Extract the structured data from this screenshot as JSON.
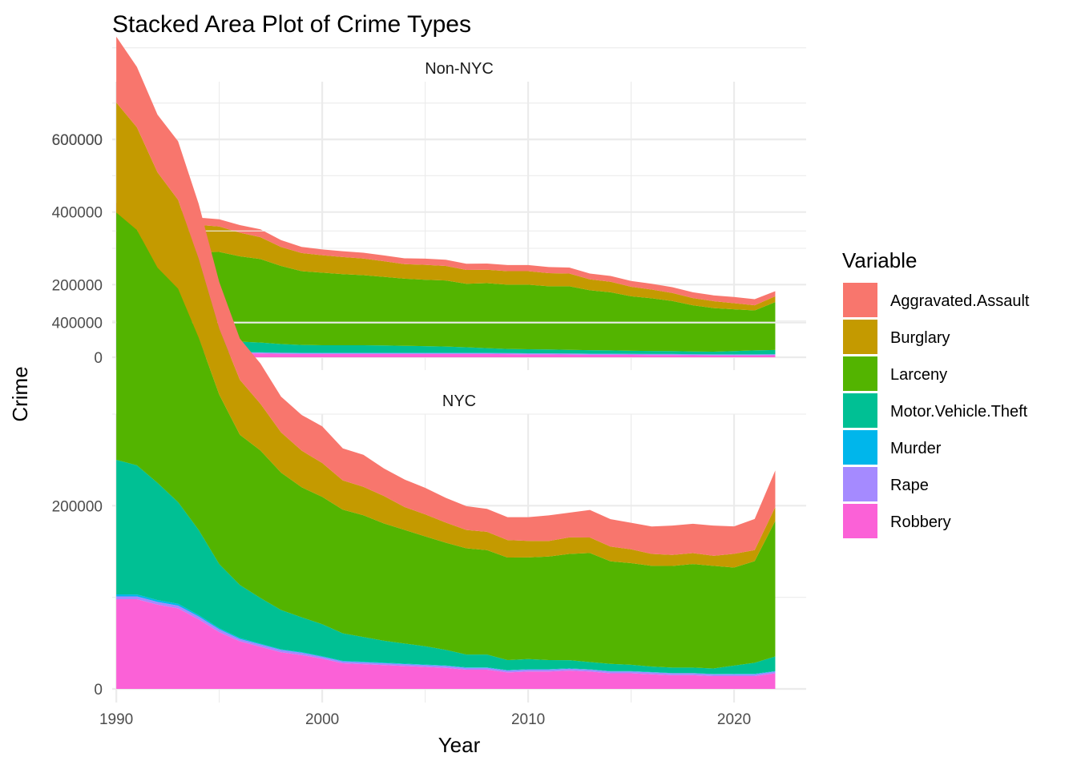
{
  "chart_data": {
    "type": "area",
    "stacked": true,
    "title": "Stacked Area Plot of Crime Types",
    "xlabel": "Year",
    "ylabel": "Crime",
    "xlim": [
      1989.8,
      2023.5
    ],
    "ylim": [
      0,
      730000
    ],
    "x_ticks": [
      1990,
      2000,
      2010,
      2020
    ],
    "y_ticks": [
      0,
      200000,
      400000,
      600000
    ],
    "grid": true,
    "legend": {
      "title": "Variable",
      "position": "right"
    },
    "colors": {
      "Aggravated.Assault": "#F8766D",
      "Burglary": "#C49A00",
      "Larceny": "#53B400",
      "Motor.Vehicle.Theft": "#00C094",
      "Murder": "#00B6EB",
      "Rape": "#A58AFF",
      "Robbery": "#FB61D7"
    },
    "stack_order": [
      "Robbery",
      "Rape",
      "Murder",
      "Motor.Vehicle.Theft",
      "Larceny",
      "Burglary",
      "Aggravated.Assault"
    ],
    "legend_order": [
      "Aggravated.Assault",
      "Burglary",
      "Larceny",
      "Motor.Vehicle.Theft",
      "Murder",
      "Rape",
      "Robbery"
    ],
    "years": [
      1990,
      1991,
      1992,
      1993,
      1994,
      1995,
      1996,
      1997,
      1998,
      1999,
      2000,
      2001,
      2002,
      2003,
      2004,
      2005,
      2006,
      2007,
      2008,
      2009,
      2010,
      2011,
      2012,
      2013,
      2014,
      2015,
      2016,
      2017,
      2018,
      2019,
      2020,
      2021,
      2022
    ],
    "panels": [
      {
        "name": "Non-NYC",
        "series": {
          "Robbery": [
            12000,
            13000,
            13500,
            13000,
            12500,
            12000,
            11000,
            10500,
            9500,
            9000,
            9000,
            9000,
            9000,
            9000,
            9000,
            9000,
            9000,
            9000,
            9000,
            8500,
            8000,
            8000,
            7500,
            7000,
            7000,
            6500,
            6000,
            6000,
            5500,
            5000,
            5000,
            5000,
            5500
          ],
          "Rape": [
            2500,
            2500,
            2500,
            2500,
            2500,
            2500,
            2500,
            2500,
            2500,
            2500,
            2500,
            2500,
            2500,
            2500,
            2500,
            2500,
            2500,
            2500,
            2500,
            2500,
            2500,
            2500,
            2500,
            2500,
            2500,
            2500,
            2500,
            2500,
            2500,
            2500,
            2500,
            2500,
            2500
          ],
          "Murder": [
            500,
            500,
            500,
            500,
            500,
            500,
            500,
            500,
            500,
            500,
            500,
            500,
            500,
            500,
            500,
            500,
            500,
            500,
            500,
            500,
            500,
            500,
            500,
            500,
            500,
            500,
            500,
            500,
            500,
            500,
            500,
            500,
            500
          ],
          "Motor.Vehicle.Theft": [
            40000,
            42000,
            40000,
            38000,
            34000,
            30000,
            29000,
            27000,
            24000,
            22000,
            21000,
            21000,
            21000,
            20500,
            19500,
            18500,
            17500,
            15500,
            13000,
            11500,
            11000,
            10500,
            10000,
            9500,
            9000,
            8500,
            8500,
            8000,
            7500,
            7500,
            9000,
            11000,
            11500
          ],
          "Larceny": [
            260000,
            272000,
            260000,
            250000,
            240000,
            245000,
            235000,
            230000,
            215000,
            203000,
            200000,
            196000,
            193000,
            189000,
            185000,
            183000,
            182000,
            175000,
            179000,
            177000,
            178000,
            174000,
            175000,
            165000,
            160000,
            150000,
            145000,
            138000,
            127000,
            120000,
            115000,
            110000,
            132000
          ],
          "Burglary": [
            90000,
            90000,
            88000,
            80000,
            75000,
            70000,
            65000,
            60000,
            52000,
            50000,
            48000,
            47000,
            46000,
            43000,
            40000,
            41000,
            40000,
            38000,
            37000,
            37000,
            37000,
            36000,
            35000,
            30000,
            29000,
            26000,
            24000,
            22000,
            20000,
            19000,
            17000,
            14000,
            16000
          ],
          "Aggravated.Assault": [
            20000,
            23000,
            24000,
            24000,
            20000,
            20000,
            21000,
            22000,
            19000,
            17000,
            16000,
            16000,
            16000,
            16000,
            16000,
            17000,
            17000,
            17000,
            17000,
            17000,
            17000,
            17000,
            16500,
            16000,
            16000,
            16000,
            16000,
            16000,
            16000,
            16000,
            17000,
            17000,
            14000
          ]
        }
      },
      {
        "name": "NYC",
        "series": {
          "Robbery": [
            98000,
            98000,
            92000,
            88000,
            76000,
            62000,
            52000,
            46000,
            40000,
            37000,
            33000,
            28000,
            27000,
            26000,
            25000,
            24000,
            23000,
            21000,
            21000,
            18000,
            19000,
            19000,
            20000,
            19000,
            17000,
            17000,
            16000,
            15000,
            15000,
            14000,
            14000,
            14000,
            17000
          ],
          "Rape": [
            3000,
            3000,
            3000,
            3000,
            3000,
            3000,
            2500,
            2500,
            2500,
            2500,
            2000,
            2000,
            2000,
            2000,
            2000,
            2000,
            2000,
            2000,
            2000,
            2000,
            2000,
            2000,
            2000,
            2000,
            2000,
            2000,
            2000,
            2000,
            2000,
            2000,
            2000,
            2000,
            2000
          ],
          "Murder": [
            2200,
            2150,
            2000,
            1950,
            1550,
            1200,
            1000,
            800,
            650,
            650,
            650,
            650,
            600,
            600,
            570,
            540,
            600,
            500,
            520,
            470,
            540,
            520,
            420,
            330,
            330,
            350,
            335,
            290,
            295,
            320,
            460,
            490,
            440
          ],
          "Motor.Vehicle.Theft": [
            147000,
            141000,
            128000,
            111000,
            93000,
            70000,
            58000,
            50000,
            43000,
            38000,
            35000,
            30000,
            27000,
            24000,
            22000,
            20000,
            17000,
            14000,
            14000,
            11000,
            11000,
            10000,
            9000,
            8000,
            8000,
            7000,
            6000,
            6000,
            6000,
            6000,
            9000,
            12000,
            16000
          ],
          "Larceny": [
            270000,
            257000,
            235000,
            233000,
            210000,
            185000,
            164000,
            161000,
            150000,
            142000,
            139000,
            135000,
            133000,
            128000,
            124000,
            120000,
            117000,
            116000,
            114000,
            112000,
            111000,
            113000,
            116000,
            119000,
            112000,
            111000,
            110000,
            111000,
            113000,
            112000,
            107000,
            111000,
            148000
          ],
          "Burglary": [
            120000,
            112000,
            104000,
            97000,
            86000,
            72000,
            60000,
            51000,
            44000,
            40000,
            37000,
            32000,
            31000,
            30000,
            25000,
            24000,
            22000,
            20000,
            20000,
            19000,
            18000,
            17000,
            18000,
            17000,
            16000,
            15000,
            13000,
            12000,
            12000,
            11000,
            15000,
            12000,
            15000
          ],
          "Aggravated.Assault": [
            72000,
            66000,
            63000,
            64000,
            60000,
            51000,
            45000,
            44000,
            39000,
            39000,
            40000,
            35000,
            35000,
            30000,
            30000,
            29000,
            27000,
            26000,
            25000,
            25000,
            26000,
            28000,
            27000,
            30000,
            30000,
            29000,
            30000,
            32000,
            32000,
            33000,
            30000,
            34000,
            40000
          ]
        }
      }
    ]
  }
}
